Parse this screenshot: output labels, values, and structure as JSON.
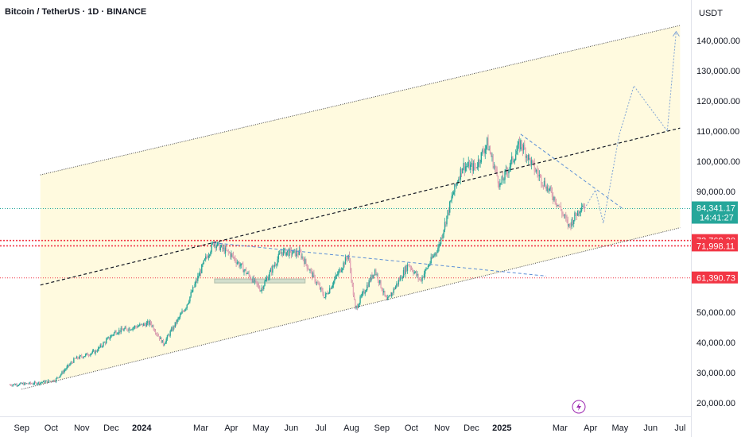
{
  "title": "Bitcoin / TetherUS · 1D · BINANCE",
  "currency": "USDT",
  "colors": {
    "up": "#26a69a",
    "down": "#ef5350",
    "candle_overlay": "#e7a8b8",
    "channel_fill": "#fff9dc",
    "channel_line": "#4a4a4a",
    "mid_line": "#131722",
    "trend_dash": "#5b8ed6",
    "red_level": "#f23645",
    "price_line": "#26a69a",
    "projection": "#7fa3d6"
  },
  "icons": {
    "replay": "lightning-icon"
  },
  "chart_data": {
    "type": "candlestick",
    "x_ticks": [
      {
        "date": "2023-09-01",
        "label": "Sep",
        "bold": false
      },
      {
        "date": "2023-10-01",
        "label": "Oct",
        "bold": false
      },
      {
        "date": "2023-11-01",
        "label": "Nov",
        "bold": false
      },
      {
        "date": "2023-12-01",
        "label": "Dec",
        "bold": false
      },
      {
        "date": "2024-01-01",
        "label": "2024",
        "bold": true
      },
      {
        "date": "2024-03-01",
        "label": "Mar",
        "bold": false
      },
      {
        "date": "2024-04-01",
        "label": "Apr",
        "bold": false
      },
      {
        "date": "2024-05-01",
        "label": "May",
        "bold": false
      },
      {
        "date": "2024-06-01",
        "label": "Jun",
        "bold": false
      },
      {
        "date": "2024-07-01",
        "label": "Jul",
        "bold": false
      },
      {
        "date": "2024-08-01",
        "label": "Aug",
        "bold": false
      },
      {
        "date": "2024-09-01",
        "label": "Sep",
        "bold": false
      },
      {
        "date": "2024-10-01",
        "label": "Oct",
        "bold": false
      },
      {
        "date": "2024-11-01",
        "label": "Nov",
        "bold": false
      },
      {
        "date": "2024-12-01",
        "label": "Dec",
        "bold": false
      },
      {
        "date": "2025-01-01",
        "label": "2025",
        "bold": true
      },
      {
        "date": "2025-03-01",
        "label": "Mar",
        "bold": false
      },
      {
        "date": "2025-04-01",
        "label": "Apr",
        "bold": false
      },
      {
        "date": "2025-05-01",
        "label": "May",
        "bold": false
      },
      {
        "date": "2025-06-01",
        "label": "Jun",
        "bold": false
      },
      {
        "date": "2025-07-01",
        "label": "Jul",
        "bold": false
      }
    ],
    "y_ticks": [
      {
        "value": 20000,
        "label": "20,000.00"
      },
      {
        "value": 30000,
        "label": "30,000.00"
      },
      {
        "value": 40000,
        "label": "40,000.00"
      },
      {
        "value": 50000,
        "label": "50,000.00"
      },
      {
        "value": 90000,
        "label": "90,000.00"
      },
      {
        "value": 100000,
        "label": "100,000.00"
      },
      {
        "value": 110000,
        "label": "110,000.00"
      },
      {
        "value": 120000,
        "label": "120,000.00"
      },
      {
        "value": 130000,
        "label": "130,000.00"
      },
      {
        "value": 140000,
        "label": "140,000.00"
      }
    ],
    "x_range": [
      "2023-08-10",
      "2025-07-12"
    ],
    "y_range": [
      15000,
      150000
    ],
    "price_path": [
      [
        "2023-08-20",
        26000
      ],
      [
        "2023-09-15",
        26500
      ],
      [
        "2023-10-05",
        27500
      ],
      [
        "2023-10-25",
        34500
      ],
      [
        "2023-11-15",
        37000
      ],
      [
        "2023-12-05",
        43500
      ],
      [
        "2024-01-10",
        46500
      ],
      [
        "2024-01-23",
        39500
      ],
      [
        "2024-02-15",
        52000
      ],
      [
        "2024-03-05",
        67000
      ],
      [
        "2024-03-14",
        73000
      ],
      [
        "2024-04-01",
        69000
      ],
      [
        "2024-05-01",
        57500
      ],
      [
        "2024-05-22",
        70000
      ],
      [
        "2024-06-10",
        69500
      ],
      [
        "2024-07-05",
        55000
      ],
      [
        "2024-07-29",
        69000
      ],
      [
        "2024-08-05",
        51000
      ],
      [
        "2024-08-25",
        64000
      ],
      [
        "2024-09-06",
        53500
      ],
      [
        "2024-09-28",
        66000
      ],
      [
        "2024-10-10",
        60500
      ],
      [
        "2024-10-29",
        72000
      ],
      [
        "2024-11-12",
        89000
      ],
      [
        "2024-11-22",
        98500
      ],
      [
        "2024-12-05",
        98000
      ],
      [
        "2024-12-17",
        106000
      ],
      [
        "2024-12-30",
        92000
      ],
      [
        "2025-01-20",
        106000
      ],
      [
        "2025-02-03",
        97500
      ],
      [
        "2025-02-25",
        87000
      ],
      [
        "2025-03-10",
        78500
      ],
      [
        "2025-03-24",
        86000
      ],
      [
        "2025-03-26",
        84341
      ]
    ],
    "channel": {
      "upper": [
        [
          "2023-09-20",
          95500
        ],
        [
          "2025-07-01",
          145000
        ]
      ],
      "lower": [
        [
          "2023-09-01",
          24500
        ],
        [
          "2025-07-01",
          78000
        ]
      ],
      "mid": [
        [
          "2023-09-20",
          59000
        ],
        [
          "2025-07-01",
          111000
        ]
      ]
    },
    "dashed_trendlines": [
      [
        [
          "2024-03-14",
          73000
        ],
        [
          "2025-02-15",
          62000
        ]
      ],
      [
        [
          "2025-01-20",
          109000
        ],
        [
          "2025-05-05",
          84000
        ]
      ]
    ],
    "projection_path": [
      [
        "2025-03-26",
        84341
      ],
      [
        "2025-04-06",
        90500
      ],
      [
        "2025-04-14",
        79500
      ],
      [
        "2025-04-30",
        108500
      ],
      [
        "2025-05-15",
        125000
      ],
      [
        "2025-06-18",
        110000
      ],
      [
        "2025-06-27",
        143000
      ]
    ],
    "support_box": {
      "from": "2024-03-15",
      "to": "2024-06-15",
      "low": 59500,
      "high": 60500
    },
    "levels": [
      {
        "value": 73769.3,
        "label": "73,769.30",
        "style": "dotted"
      },
      {
        "value": 71998.11,
        "label": "71,998.11",
        "style": "dotted"
      },
      {
        "value": 61390.73,
        "label": "61,390.73",
        "style": "dotted"
      }
    ],
    "last_price": {
      "value": 84341.17,
      "label": "84,341.17",
      "countdown": "14:41:27"
    }
  }
}
